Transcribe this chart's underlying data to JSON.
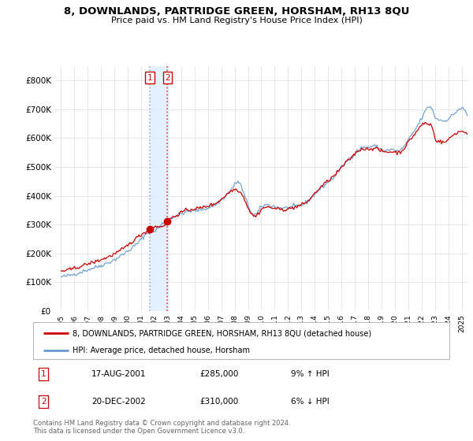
{
  "title": "8, DOWNLANDS, PARTRIDGE GREEN, HORSHAM, RH13 8QU",
  "subtitle": "Price paid vs. HM Land Registry's House Price Index (HPI)",
  "legend_label_red": "8, DOWNLANDS, PARTRIDGE GREEN, HORSHAM, RH13 8QU (detached house)",
  "legend_label_blue": "HPI: Average price, detached house, Horsham",
  "transaction1_label": "1",
  "transaction1_date": "17-AUG-2001",
  "transaction1_price": "£285,000",
  "transaction1_hpi": "9% ↑ HPI",
  "transaction2_label": "2",
  "transaction2_date": "20-DEC-2002",
  "transaction2_price": "£310,000",
  "transaction2_hpi": "6% ↓ HPI",
  "footer1": "Contains HM Land Registry data © Crown copyright and database right 2024.",
  "footer2": "This data is licensed under the Open Government Licence v3.0.",
  "ylim": [
    0,
    850000
  ],
  "yticks": [
    0,
    100000,
    200000,
    300000,
    400000,
    500000,
    600000,
    700000,
    800000
  ],
  "ytick_labels": [
    "£0",
    "£100K",
    "£200K",
    "£300K",
    "£400K",
    "£500K",
    "£600K",
    "£700K",
    "£800K"
  ],
  "color_red": "#cc0000",
  "color_blue": "#6699cc",
  "color_vspan": "#ddeeff",
  "transaction1_x": 2001.63,
  "transaction2_x": 2002.97,
  "transaction1_y": 285000,
  "transaction2_y": 310000,
  "xmin": 1994.5,
  "xmax": 2025.5
}
